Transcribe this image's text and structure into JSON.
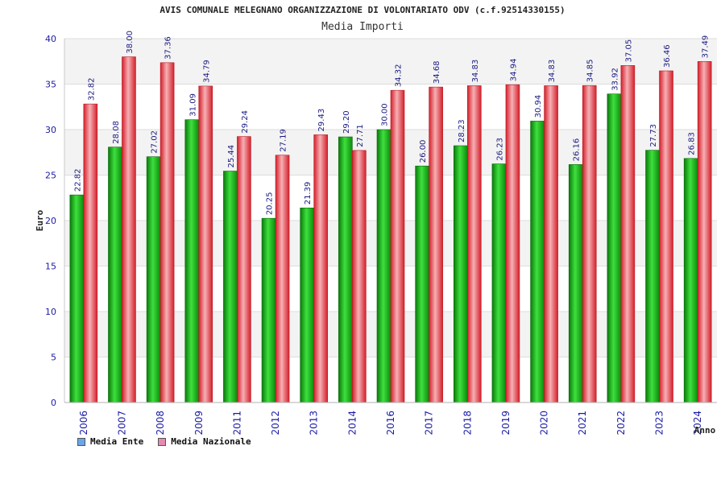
{
  "chart_data": {
    "type": "bar",
    "title": "AVIS COMUNALE MELEGNANO ORGANIZZAZIONE DI VOLONTARIATO ODV (c.f.92514330155)",
    "subtitle": "Media Importi",
    "xlabel": "Anno",
    "ylabel": "Euro",
    "ylim": [
      0,
      40
    ],
    "yticks": [
      0,
      5,
      10,
      15,
      20,
      25,
      30,
      35,
      40
    ],
    "ytick_labels": [
      "0",
      "5",
      "10",
      "15",
      "20",
      "25",
      "30",
      "35",
      "40"
    ],
    "categories": [
      "2006",
      "2007",
      "2008",
      "2009",
      "2011",
      "2012",
      "2013",
      "2014",
      "2016",
      "2017",
      "2018",
      "2019",
      "2020",
      "2021",
      "2022",
      "2023",
      "2024"
    ],
    "series": [
      {
        "name": "Media Ente",
        "color": "#1fb31f",
        "values": [
          22.82,
          28.08,
          27.02,
          31.09,
          25.44,
          20.25,
          21.39,
          29.2,
          30.0,
          26.0,
          28.23,
          26.23,
          30.94,
          26.16,
          33.92,
          27.73,
          26.83
        ],
        "labels": [
          "22.82",
          "28.08",
          "27.02",
          "31.09",
          "25.44",
          "20.25",
          "21.39",
          "29.20",
          "30.00",
          "26.00",
          "28.23",
          "26.23",
          "30.94",
          "26.16",
          "33.92",
          "27.73",
          "26.83"
        ]
      },
      {
        "name": "Media Nazionale",
        "color": "#e8323c",
        "values": [
          32.82,
          38.0,
          37.36,
          34.79,
          29.24,
          27.19,
          29.43,
          27.71,
          34.32,
          34.68,
          34.83,
          34.94,
          34.83,
          34.85,
          37.05,
          36.46,
          37.49
        ],
        "labels": [
          "32.82",
          "38.00",
          "37.36",
          "34.79",
          "29.24",
          "27.19",
          "29.43",
          "27.71",
          "34.32",
          "34.68",
          "34.83",
          "34.94",
          "34.83",
          "34.85",
          "37.05",
          "36.46",
          "37.49"
        ]
      }
    ],
    "legend": {
      "position": "bottom-left",
      "items": [
        {
          "label": "Media Ente",
          "swatch": "#6aa6e8"
        },
        {
          "label": "Media Nazionale",
          "swatch": "#e58ab0"
        }
      ]
    },
    "grid": true
  }
}
